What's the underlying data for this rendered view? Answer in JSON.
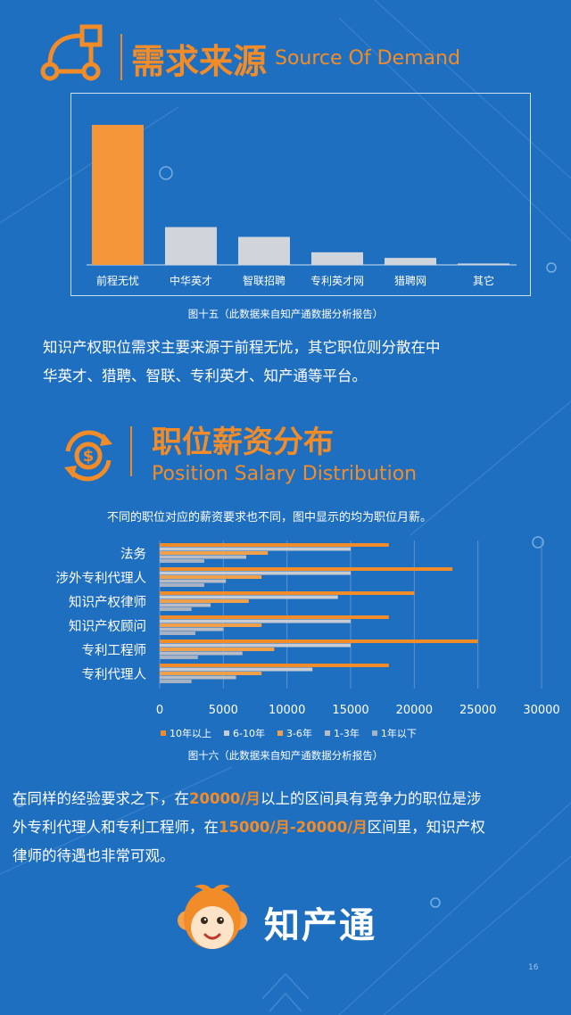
{
  "section1": {
    "title_cn": "需求来源",
    "title_en": "Source Of Demand",
    "icon": "flowchart-icon"
  },
  "chart_data": [
    {
      "type": "bar",
      "categories": [
        "前程无忧",
        "中华英才",
        "智联招聘",
        "专利英才网",
        "猎聘网",
        "其它"
      ],
      "values": [
        100,
        27,
        20,
        9,
        5,
        1
      ],
      "colors": [
        "#f6963a",
        "#d0d4db",
        "#d0d4db",
        "#d0d4db",
        "#d0d4db",
        "#d0d4db"
      ],
      "caption": "图十五（此数据来自知产通数据分析报告）"
    },
    {
      "type": "bar",
      "orientation": "horizontal",
      "categories": [
        "法务",
        "涉外专利代理人",
        "知识产权律师",
        "知识产权顾问",
        "专利工程师",
        "专利代理人"
      ],
      "series": [
        {
          "name": "10年以上",
          "color": "#f28c28",
          "values": [
            18000,
            23000,
            20000,
            18000,
            25000,
            18000
          ]
        },
        {
          "name": "6-10年",
          "color": "#c8cbd2",
          "values": [
            15000,
            15000,
            14000,
            15000,
            15000,
            12000
          ]
        },
        {
          "name": "3-6年",
          "color": "#f0a04a",
          "values": [
            8500,
            8000,
            7000,
            8000,
            9000,
            8000
          ]
        },
        {
          "name": "1-3年",
          "color": "#b9bcc4",
          "values": [
            6800,
            5200,
            4000,
            5000,
            6500,
            6000
          ]
        },
        {
          "name": "1年以下",
          "color": "#a7b2c2",
          "values": [
            3500,
            3500,
            2500,
            2800,
            3000,
            2500
          ]
        }
      ],
      "xticks": [
        "0",
        "5000",
        "10000",
        "15000",
        "20000",
        "25000",
        "30000"
      ],
      "xlim": [
        0,
        30000
      ],
      "grid": true,
      "legend_position": "bottom",
      "caption": "图十六（此数据来自知产通数据分析报告）"
    }
  ],
  "para1": {
    "line1": "知识产权职位需求主要来源于前程无忧，其它职位则分散在中",
    "line2": "华英才、猎聘、智联、专利英才、知产通等平台。"
  },
  "section2": {
    "title_cn": "职位薪资分布",
    "title_en": "Position Salary Distribution",
    "icon": "dollar-cycle-icon",
    "note": "不同的职位对应的薪资要求也不同，图中显示的均为职位月薪。"
  },
  "para2": {
    "l1a": "在同样的经验要求之下，在",
    "l1b": "20000/月",
    "l1c": "以上的区间具有竞争力的职位是涉",
    "l2a": "外专利代理人和专利工程师，在",
    "l2b": "15000/月-20000/月",
    "l2c": "区间里，知识产权",
    "l3": "律师的待遇也非常可观。"
  },
  "brand": {
    "name": "知产通",
    "mascot": "monkey-mascot-icon"
  },
  "page_number": "16",
  "colors": {
    "background": "#1f6fc0",
    "accent": "#f28c28"
  }
}
